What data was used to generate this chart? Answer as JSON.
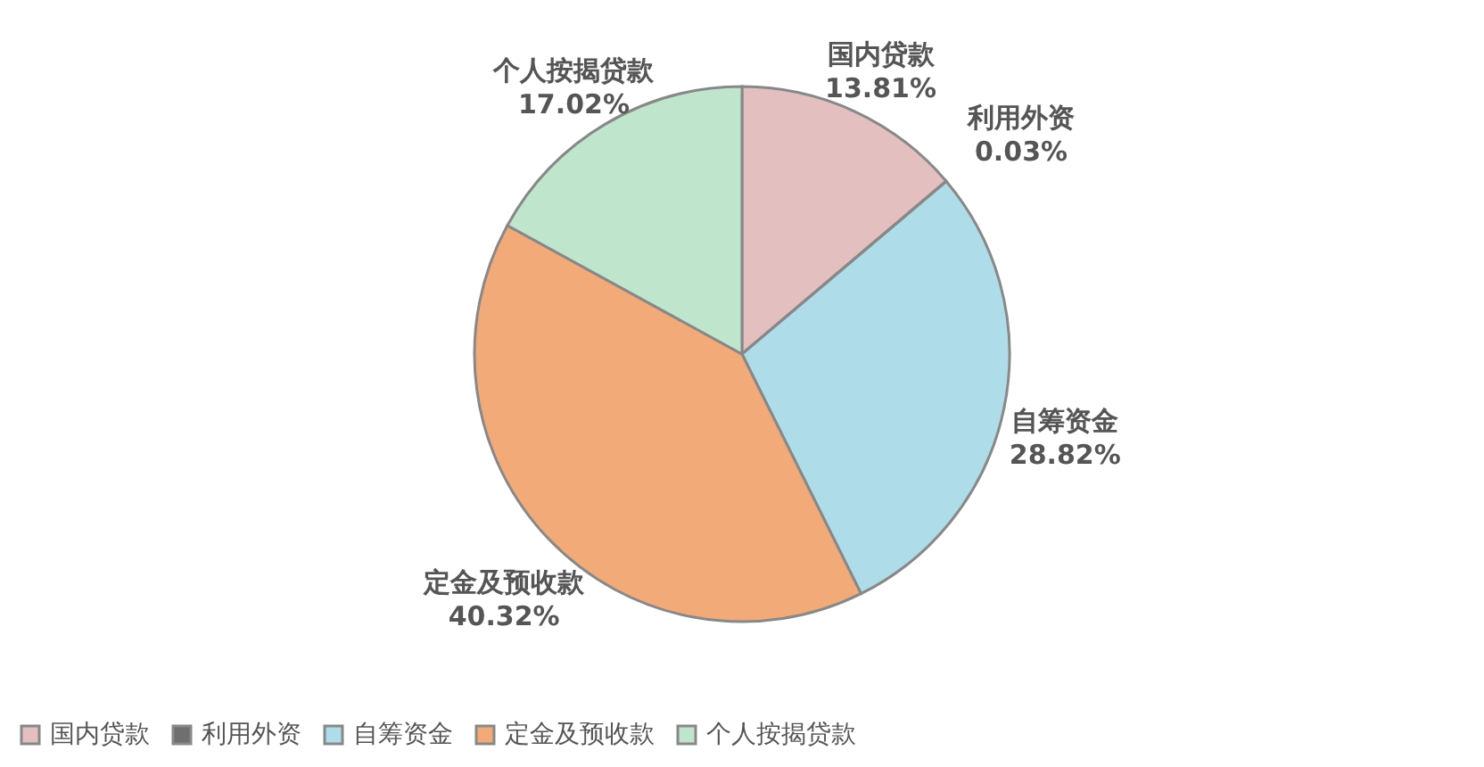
{
  "chart_data": {
    "type": "pie",
    "categories": [
      "国内贷款",
      "利用外资",
      "自筹资金",
      "定金及预收款",
      "个人按揭贷款"
    ],
    "values": [
      13.81,
      0.03,
      28.82,
      40.32,
      17.02
    ],
    "value_labels": [
      "13.81%",
      "0.03%",
      "28.82%",
      "40.32%",
      "17.02%"
    ],
    "colors": [
      "#e4bfc0",
      "#6f6f6f",
      "#aedde9",
      "#f2aa78",
      "#c0e5cd"
    ],
    "legend": "bottom"
  }
}
